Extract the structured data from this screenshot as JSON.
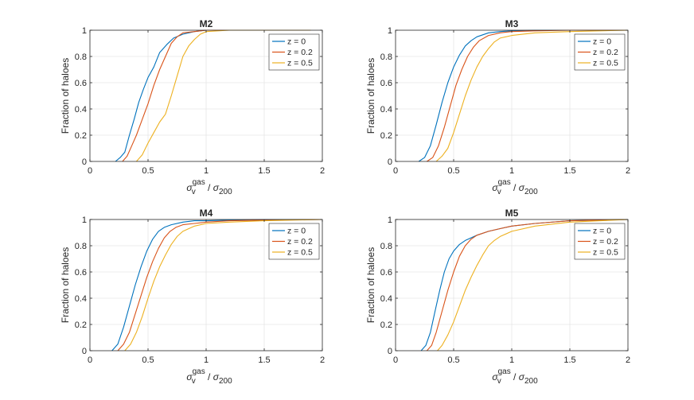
{
  "chart_data": [
    {
      "type": "line",
      "title": "M2",
      "xlabel": "σ_v^gas / σ_200",
      "ylabel": "Fraction of haloes",
      "xlim": [
        0,
        2
      ],
      "ylim": [
        0,
        1
      ],
      "xticks": [
        0,
        0.5,
        1,
        1.5,
        2
      ],
      "xtick_labels": [
        "0",
        "0.5",
        "1",
        "1.5",
        "2"
      ],
      "yticks": [
        0,
        0.2,
        0.4,
        0.6,
        0.8,
        1
      ],
      "ytick_labels": [
        "0",
        "0.2",
        "0.4",
        "0.6",
        "0.8",
        "1"
      ],
      "grid": true,
      "legend_position": "top-right",
      "series": [
        {
          "name": "z = 0",
          "color": "#0072BD",
          "x": [
            0.22,
            0.26,
            0.3,
            0.34,
            0.38,
            0.42,
            0.46,
            0.5,
            0.55,
            0.6,
            0.66,
            0.72,
            0.8,
            0.9,
            1.0,
            1.3,
            1.9
          ],
          "y": [
            0.0,
            0.03,
            0.07,
            0.2,
            0.32,
            0.45,
            0.55,
            0.64,
            0.72,
            0.83,
            0.89,
            0.94,
            0.97,
            0.99,
            1.0,
            1.0,
            1.0
          ]
        },
        {
          "name": "z = 0.2",
          "color": "#D95319",
          "x": [
            0.28,
            0.32,
            0.36,
            0.4,
            0.45,
            0.5,
            0.55,
            0.6,
            0.65,
            0.7,
            0.75,
            0.8,
            0.9,
            1.0,
            1.5,
            1.9
          ],
          "y": [
            0.0,
            0.04,
            0.12,
            0.2,
            0.32,
            0.44,
            0.58,
            0.7,
            0.8,
            0.9,
            0.95,
            0.98,
            0.99,
            1.0,
            1.0,
            1.0
          ]
        },
        {
          "name": "z = 0.5",
          "color": "#EDB120",
          "x": [
            0.4,
            0.45,
            0.5,
            0.55,
            0.6,
            0.65,
            0.7,
            0.75,
            0.8,
            0.85,
            0.9,
            0.95,
            1.0,
            1.2,
            1.9
          ],
          "y": [
            0.0,
            0.05,
            0.14,
            0.22,
            0.3,
            0.36,
            0.5,
            0.65,
            0.8,
            0.88,
            0.93,
            0.97,
            0.99,
            1.0,
            1.0
          ]
        }
      ]
    },
    {
      "type": "line",
      "title": "M3",
      "xlabel": "σ_v^gas / σ_200",
      "ylabel": "Fraction of haloes",
      "xlim": [
        0,
        2
      ],
      "ylim": [
        0,
        1
      ],
      "xticks": [
        0,
        0.5,
        1,
        1.5,
        2
      ],
      "xtick_labels": [
        "0",
        "0.5",
        "1",
        "1.5",
        "2"
      ],
      "yticks": [
        0,
        0.2,
        0.4,
        0.6,
        0.8,
        1
      ],
      "ytick_labels": [
        "0",
        "0.2",
        "0.4",
        "0.6",
        "0.8",
        "1"
      ],
      "grid": true,
      "legend_position": "top-right",
      "series": [
        {
          "name": "z = 0",
          "color": "#0072BD",
          "x": [
            0.2,
            0.25,
            0.3,
            0.35,
            0.4,
            0.45,
            0.5,
            0.55,
            0.6,
            0.65,
            0.7,
            0.8,
            0.9,
            1.0,
            1.2,
            1.5,
            2.0
          ],
          "y": [
            0.0,
            0.03,
            0.12,
            0.28,
            0.45,
            0.6,
            0.72,
            0.81,
            0.88,
            0.92,
            0.95,
            0.98,
            0.99,
            0.995,
            1.0,
            1.0,
            1.0
          ]
        },
        {
          "name": "z = 0.2",
          "color": "#D95319",
          "x": [
            0.27,
            0.32,
            0.37,
            0.42,
            0.47,
            0.52,
            0.57,
            0.62,
            0.67,
            0.72,
            0.8,
            0.9,
            1.0,
            1.2,
            1.5,
            2.0
          ],
          "y": [
            0.0,
            0.03,
            0.12,
            0.26,
            0.42,
            0.58,
            0.7,
            0.8,
            0.87,
            0.92,
            0.96,
            0.98,
            0.99,
            0.995,
            1.0,
            1.0
          ]
        },
        {
          "name": "z = 0.5",
          "color": "#EDB120",
          "x": [
            0.35,
            0.4,
            0.45,
            0.5,
            0.55,
            0.6,
            0.65,
            0.7,
            0.75,
            0.8,
            0.85,
            0.9,
            1.0,
            1.2,
            1.5,
            2.0
          ],
          "y": [
            0.0,
            0.04,
            0.1,
            0.22,
            0.36,
            0.5,
            0.62,
            0.72,
            0.8,
            0.86,
            0.91,
            0.94,
            0.96,
            0.98,
            0.99,
            1.0
          ]
        }
      ]
    },
    {
      "type": "line",
      "title": "M4",
      "xlabel": "σ_v^gas / σ_200",
      "ylabel": "Fraction of haloes",
      "xlim": [
        0,
        2
      ],
      "ylim": [
        0,
        1
      ],
      "xticks": [
        0,
        0.5,
        1,
        1.5,
        2
      ],
      "xtick_labels": [
        "0",
        "0.5",
        "1",
        "1.5",
        "2"
      ],
      "yticks": [
        0,
        0.2,
        0.4,
        0.6,
        0.8,
        1
      ],
      "ytick_labels": [
        "0",
        "0.2",
        "0.4",
        "0.6",
        "0.8",
        "1"
      ],
      "grid": true,
      "legend_position": "top-right",
      "series": [
        {
          "name": "z = 0",
          "color": "#0072BD",
          "x": [
            0.19,
            0.24,
            0.29,
            0.34,
            0.39,
            0.44,
            0.49,
            0.54,
            0.59,
            0.64,
            0.7,
            0.8,
            0.9,
            1.0,
            1.2,
            1.5,
            2.0
          ],
          "y": [
            0.0,
            0.05,
            0.18,
            0.34,
            0.5,
            0.64,
            0.76,
            0.85,
            0.91,
            0.94,
            0.96,
            0.98,
            0.99,
            0.99,
            0.995,
            1.0,
            1.0
          ]
        },
        {
          "name": "z = 0.2",
          "color": "#D95319",
          "x": [
            0.24,
            0.29,
            0.34,
            0.39,
            0.44,
            0.49,
            0.54,
            0.59,
            0.64,
            0.69,
            0.74,
            0.8,
            0.9,
            1.0,
            1.2,
            1.5,
            2.0
          ],
          "y": [
            0.0,
            0.05,
            0.14,
            0.28,
            0.42,
            0.56,
            0.68,
            0.78,
            0.86,
            0.91,
            0.94,
            0.96,
            0.97,
            0.98,
            0.99,
            0.995,
            1.0
          ]
        },
        {
          "name": "z = 0.5",
          "color": "#EDB120",
          "x": [
            0.3,
            0.35,
            0.4,
            0.45,
            0.5,
            0.55,
            0.6,
            0.65,
            0.7,
            0.75,
            0.8,
            0.9,
            1.0,
            1.2,
            1.5,
            2.0
          ],
          "y": [
            0.0,
            0.05,
            0.14,
            0.26,
            0.4,
            0.53,
            0.64,
            0.73,
            0.81,
            0.87,
            0.91,
            0.95,
            0.97,
            0.98,
            0.99,
            1.0
          ]
        }
      ]
    },
    {
      "type": "line",
      "title": "M5",
      "xlabel": "σ_v^gas / σ_200",
      "ylabel": "Fraction of haloes",
      "xlim": [
        0,
        2
      ],
      "ylim": [
        0,
        1
      ],
      "xticks": [
        0,
        0.5,
        1,
        1.5,
        2
      ],
      "xtick_labels": [
        "0",
        "0.5",
        "1",
        "1.5",
        "2"
      ],
      "yticks": [
        0,
        0.2,
        0.4,
        0.6,
        0.8,
        1
      ],
      "ytick_labels": [
        "0",
        "0.2",
        "0.4",
        "0.6",
        "0.8",
        "1"
      ],
      "grid": true,
      "legend_position": "top-right",
      "series": [
        {
          "name": "z = 0",
          "color": "#0072BD",
          "x": [
            0.22,
            0.26,
            0.3,
            0.34,
            0.38,
            0.42,
            0.46,
            0.5,
            0.55,
            0.6,
            0.7,
            0.8,
            0.9,
            1.0,
            1.2,
            1.5,
            2.0
          ],
          "y": [
            0.0,
            0.04,
            0.14,
            0.3,
            0.46,
            0.6,
            0.7,
            0.76,
            0.81,
            0.84,
            0.88,
            0.91,
            0.93,
            0.95,
            0.97,
            0.99,
            1.0
          ]
        },
        {
          "name": "z = 0.2",
          "color": "#D95319",
          "x": [
            0.27,
            0.31,
            0.35,
            0.4,
            0.45,
            0.5,
            0.55,
            0.6,
            0.65,
            0.7,
            0.8,
            0.9,
            1.0,
            1.2,
            1.5,
            2.0
          ],
          "y": [
            0.0,
            0.04,
            0.14,
            0.3,
            0.46,
            0.6,
            0.72,
            0.8,
            0.85,
            0.88,
            0.91,
            0.93,
            0.95,
            0.97,
            0.99,
            1.0
          ]
        },
        {
          "name": "z = 0.5",
          "color": "#EDB120",
          "x": [
            0.36,
            0.4,
            0.45,
            0.5,
            0.55,
            0.6,
            0.65,
            0.7,
            0.75,
            0.8,
            0.85,
            0.9,
            1.0,
            1.2,
            1.5,
            2.0
          ],
          "y": [
            0.0,
            0.04,
            0.12,
            0.22,
            0.34,
            0.46,
            0.56,
            0.65,
            0.73,
            0.8,
            0.84,
            0.87,
            0.91,
            0.95,
            0.98,
            1.0
          ]
        }
      ]
    }
  ]
}
